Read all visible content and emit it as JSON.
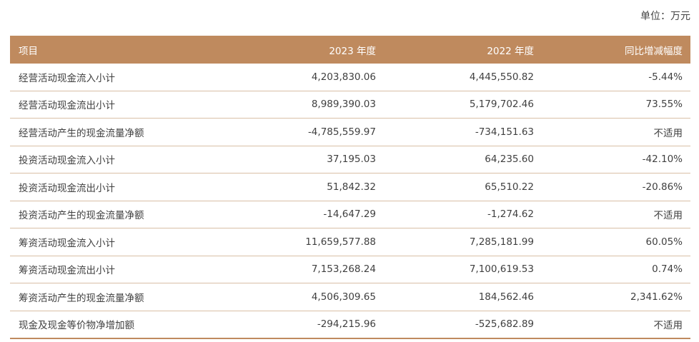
{
  "unit_label": "单位：万元",
  "headers": [
    "项目",
    "2023 年度",
    "2022 年度",
    "同比增减幅度"
  ],
  "rows": [
    [
      "经营活动现金流入小计",
      "4,203,830.06",
      "4,445,550.82",
      "-5.44%"
    ],
    [
      "经营活动现金流出小计",
      "8,989,390.03",
      "5,179,702.46",
      "73.55%"
    ],
    [
      "经营活动产生的现金流量净额",
      "-4,785,559.97",
      "-734,151.63",
      "不适用"
    ],
    [
      "投资活动现金流入小计",
      "37,195.03",
      "64,235.60",
      "-42.10%"
    ],
    [
      "投资活动现金流出小计",
      "51,842.32",
      "65,510.22",
      "-20.86%"
    ],
    [
      "投资活动产生的现金流量净额",
      "-14,647.29",
      "-1,274.62",
      "不适用"
    ],
    [
      "筹资活动现金流入小计",
      "11,659,577.88",
      "7,285,181.99",
      "60.05%"
    ],
    [
      "筹资活动现金流出小计",
      "7,153,268.24",
      "7,100,619.53",
      "0.74%"
    ],
    [
      "筹资活动产生的现金流量净额",
      "4,506,309.65",
      "184,562.46",
      "2,341.62%"
    ],
    [
      "现金及现金等价物净增加额",
      "-294,215.96",
      "-525,682.89",
      "不适用"
    ]
  ]
}
